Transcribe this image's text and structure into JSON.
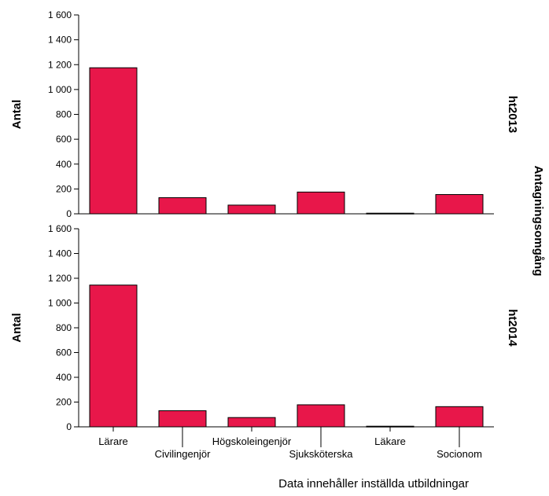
{
  "chart_data": {
    "type": "bar",
    "xlabel": "Data innehåller inställda utbildningar",
    "ylabel": "Antal",
    "facet_label": "Antagningsomgång",
    "categories": [
      "Lärare",
      "Civilingenjör",
      "Högskoleingenjör",
      "Sjuksköterska",
      "Läkare",
      "Socionom"
    ],
    "ylim": [
      0,
      1600
    ],
    "yticks": [
      0,
      200,
      400,
      600,
      800,
      1000,
      1200,
      1400,
      1600
    ],
    "ytick_labels": [
      "0",
      "200",
      "400",
      "600",
      "800",
      "1 000",
      "1 200",
      "1 400",
      "1 600"
    ],
    "bar_color": "#e8174a",
    "panels": [
      {
        "label": "ht2013",
        "values": [
          1175,
          130,
          70,
          175,
          5,
          155
        ]
      },
      {
        "label": "ht2014",
        "values": [
          1145,
          130,
          75,
          178,
          5,
          163
        ]
      }
    ]
  }
}
